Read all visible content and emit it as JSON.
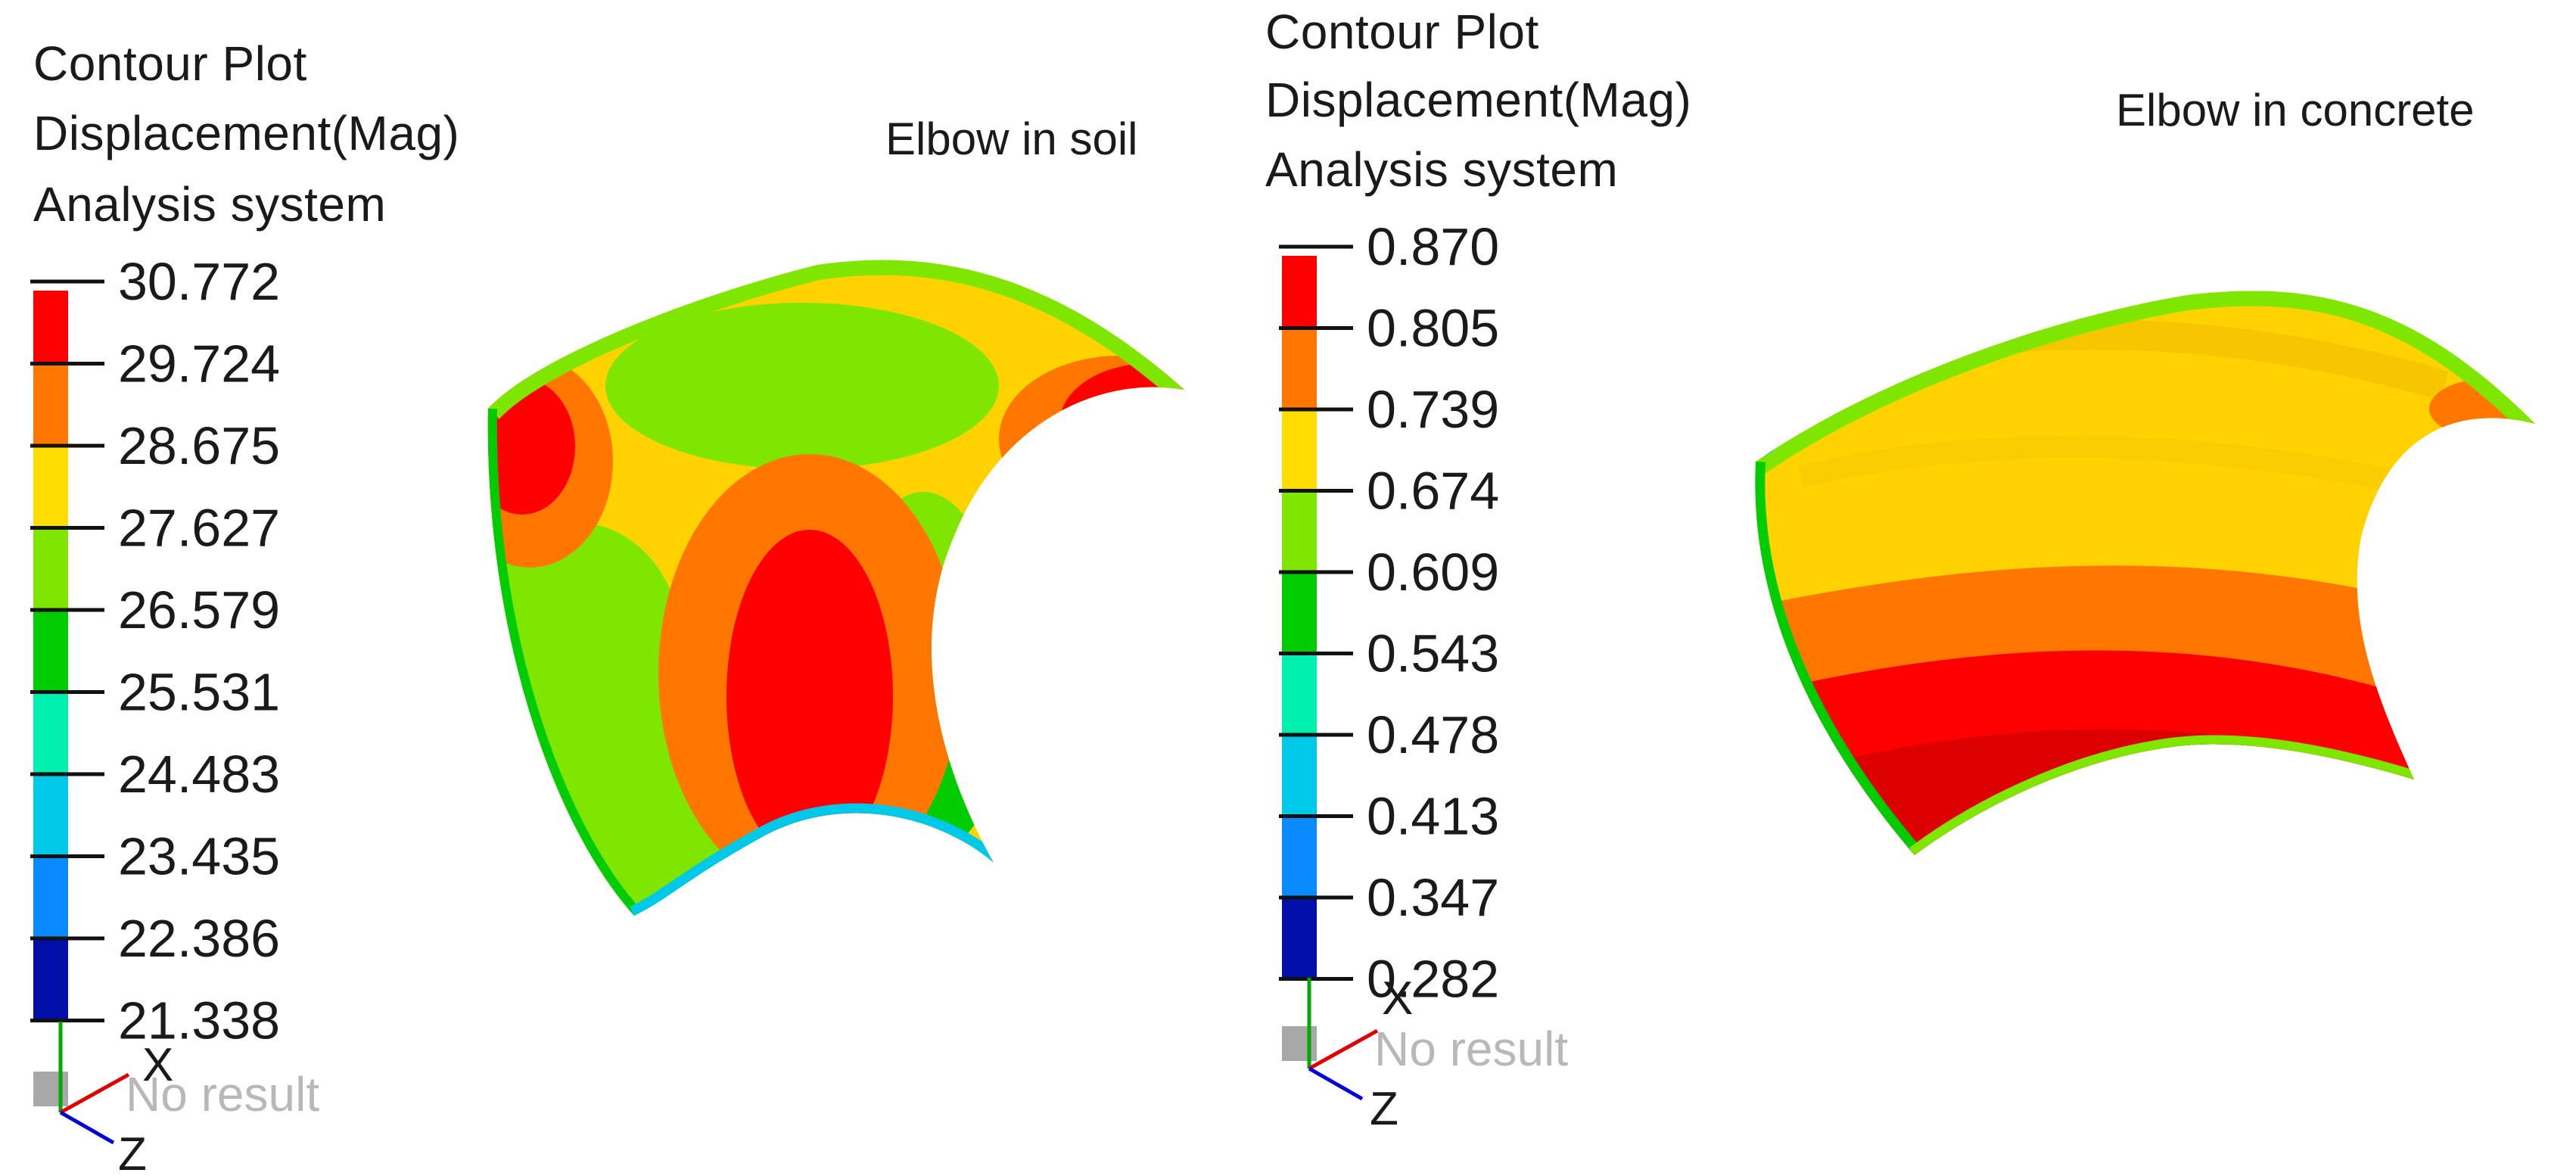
{
  "left": {
    "header": [
      "Contour Plot",
      "Displacement(Mag)",
      "Analysis system"
    ],
    "title": "Elbow in soil",
    "legend": {
      "values": [
        "30.772",
        "29.724",
        "28.675",
        "27.627",
        "26.579",
        "25.531",
        "24.483",
        "23.435",
        "22.386",
        "21.338"
      ],
      "colors": [
        "#ff0000",
        "#ff7700",
        "#ffdd00",
        "#7fe600",
        "#00cc00",
        "#00f0b0",
        "#00c8e8",
        "#0a8aff",
        "#0010a8"
      ],
      "no_result": "No result"
    },
    "triad": {
      "x": "X",
      "z": "Z"
    }
  },
  "right": {
    "header": [
      "Contour Plot",
      "Displacement(Mag)",
      "Analysis system"
    ],
    "title": "Elbow in concrete",
    "legend": {
      "values": [
        "0.870",
        "0.805",
        "0.739",
        "0.674",
        "0.609",
        "0.543",
        "0.478",
        "0.413",
        "0.347",
        "0.282"
      ],
      "colors": [
        "#ff0000",
        "#ff7700",
        "#ffdd00",
        "#7fe600",
        "#00cc00",
        "#00f0b0",
        "#00c8e8",
        "#0a8aff",
        "#0010a8"
      ],
      "no_result": "No result"
    },
    "triad": {
      "x": "X",
      "z": "Z"
    }
  }
}
